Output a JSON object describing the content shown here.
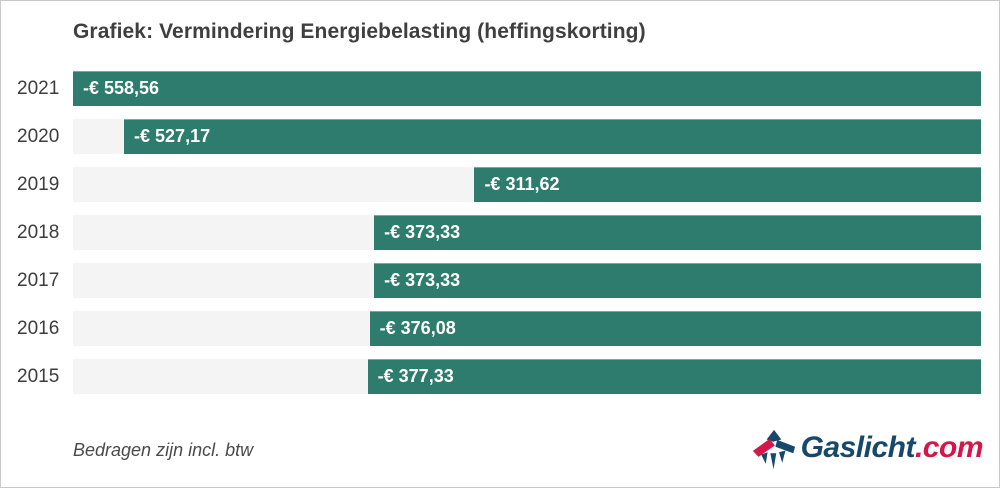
{
  "title": "Grafiek: Vermindering Energiebelasting (heffingskorting)",
  "footer": {
    "note": "Bedragen zijn incl. btw"
  },
  "logo": {
    "name": "Gaslicht.com",
    "text_main": "Gaslicht",
    "text_suffix": ".com"
  },
  "colors": {
    "bar": "#2d7c6d",
    "track": "#f4f4f4",
    "title_text": "#3f3f3f",
    "year_text": "#3d3d3d",
    "value_text": "#ffffff",
    "note_text": "#4a4a4a",
    "logo_blue": "#16486b",
    "logo_red": "#d3174b",
    "border": "#c9c9c9"
  },
  "chart_data": {
    "type": "bar",
    "orientation": "horizontal",
    "bar_anchor": "right",
    "title": "Grafiek: Vermindering Energiebelasting (heffingskorting)",
    "categories": [
      "2021",
      "2020",
      "2019",
      "2018",
      "2017",
      "2016",
      "2015"
    ],
    "values": [
      -558.56,
      -527.17,
      -311.62,
      -373.33,
      -373.33,
      -376.08,
      -377.33
    ],
    "value_labels": [
      "-€ 558,56",
      "-€ 527,17",
      "-€ 311,62",
      "-€ 373,33",
      "-€ 373,33",
      "-€ 376,08",
      "-€ 377,33"
    ],
    "x_axis_max_abs": 558.56,
    "currency": "EUR",
    "grid": false,
    "legend": false,
    "note": "Bedragen zijn incl. btw"
  }
}
